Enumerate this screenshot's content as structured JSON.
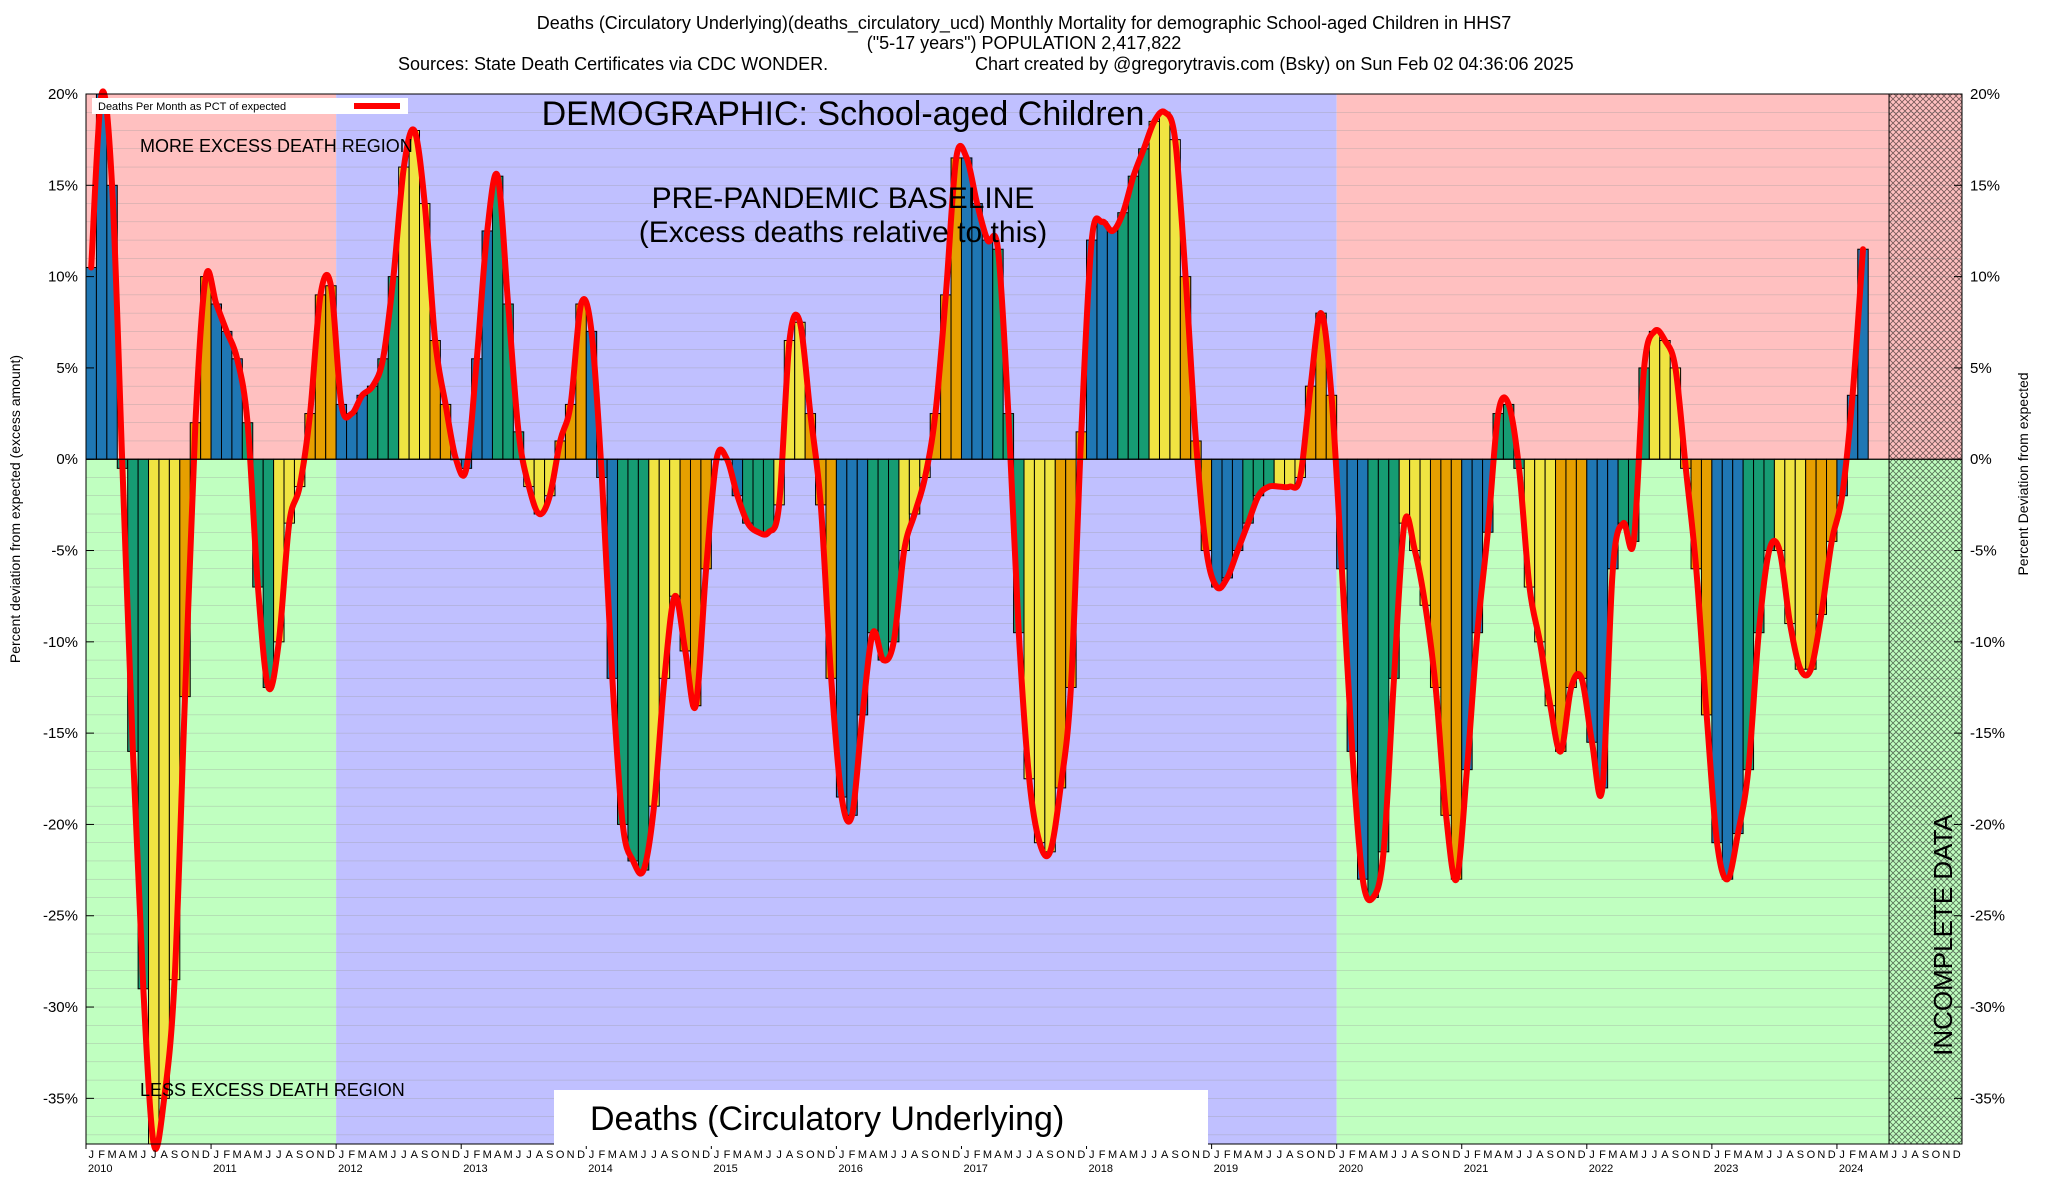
{
  "header": {
    "line1": "Deaths (Circulatory Underlying)(deaths_circulatory_ucd) Monthly Mortality for demographic School-aged Children in HHS7",
    "line2": "(\"5-17 years\") POPULATION 2,417,822",
    "line3_left": "Sources: State Death Certificates via CDC WONDER.",
    "line3_right": "Chart created by @gregorytravis.com (Bsky) on Sun Feb 02 04:36:06 2025"
  },
  "chart_data": {
    "type": "bar",
    "title": "Deaths (Circulatory Underlying)(deaths_circulatory_ucd) Monthly Mortality for demographic School-aged Children in HHS7",
    "ylabel_left": "Percent deviation from expected (excess amount)",
    "ylabel_right": "Percent Deviation from expected",
    "ylim": [
      -37.5,
      20
    ],
    "yticks": [
      20,
      15,
      10,
      5,
      0,
      -5,
      -10,
      -15,
      -20,
      -25,
      -30,
      -35
    ],
    "ytick_labels": [
      "20%",
      "15%",
      "10%",
      "5%",
      "0%",
      "-5%",
      "-10%",
      "-15%",
      "-20%",
      "-25%",
      "-30%",
      "-35%"
    ],
    "x_start": "2010-01",
    "x_end": "2024-12",
    "years": [
      "2010",
      "2011",
      "2012",
      "2013",
      "2014",
      "2015",
      "2016",
      "2017",
      "2018",
      "2019",
      "2020",
      "2021",
      "2022",
      "2023",
      "2024"
    ],
    "month_letters": [
      "J",
      "F",
      "M",
      "A",
      "M",
      "J",
      "J",
      "A",
      "S",
      "O",
      "N",
      "D"
    ],
    "legend": [
      {
        "label": "Deaths Per Month as PCT of expected",
        "color": "#ff0000"
      }
    ],
    "annotations": {
      "demographic": "DEMOGRAPHIC: School-aged Children",
      "baseline_1": "PRE-PANDEMIC BASELINE",
      "baseline_2": "(Excess deaths relative to this)",
      "more_region": "MORE EXCESS DEATH REGION",
      "less_region": "LESS EXCESS DEATH REGION",
      "incomplete": "INCOMPLETE DATA",
      "bottom_label": "Deaths (Circulatory Underlying)"
    },
    "baseline_period": [
      "2012-01",
      "2019-12"
    ],
    "incomplete_period": [
      "2024-06",
      "2024-12"
    ],
    "colors": {
      "bar_blue": "#1f77b4",
      "bar_green": "#169c73",
      "bar_yellow": "#f0e442",
      "bar_orange": "#e69f00",
      "line": "#ff0000",
      "excess_region": "#ffc0c0",
      "less_region": "#c0ffc0",
      "baseline_region": "#c0c0ff"
    },
    "series": [
      {
        "name": "Deaths Per Month as PCT of expected",
        "values": [
          10.5,
          20.0,
          15.0,
          -0.5,
          -16.0,
          -29.0,
          -37.5,
          -35.0,
          -28.5,
          -13.0,
          2.0,
          10.0,
          8.5,
          7.0,
          5.5,
          2.0,
          -7.0,
          -12.5,
          -10.0,
          -3.5,
          -1.5,
          2.5,
          9.0,
          9.5,
          3.0,
          2.5,
          3.5,
          4.0,
          5.5,
          10.0,
          16.0,
          18.0,
          14.0,
          6.5,
          3.0,
          0.0,
          -0.5,
          5.5,
          12.5,
          15.5,
          8.5,
          1.5,
          -1.5,
          -3.0,
          -2.0,
          1.0,
          3.0,
          8.5,
          7.0,
          -1.0,
          -12.0,
          -20.0,
          -22.0,
          -22.5,
          -19.0,
          -12.0,
          -7.5,
          -10.5,
          -13.5,
          -6.0,
          0.0,
          0.0,
          -2.0,
          -3.5,
          -4.0,
          -4.0,
          -2.5,
          6.5,
          7.5,
          2.5,
          -2.5,
          -12.0,
          -18.5,
          -19.5,
          -14.0,
          -9.5,
          -11.0,
          -10.0,
          -5.0,
          -3.0,
          -1.0,
          2.5,
          9.0,
          16.5,
          16.5,
          14.0,
          12.0,
          11.5,
          2.5,
          -9.5,
          -17.5,
          -21.0,
          -21.5,
          -18.0,
          -12.5,
          1.5,
          12.0,
          13.0,
          12.5,
          13.5,
          15.5,
          17.0,
          18.5,
          19.0,
          17.5,
          10.0,
          1.0,
          -5.0,
          -7.0,
          -6.5,
          -5.0,
          -3.5,
          -2.0,
          -1.5,
          -1.5,
          -1.5,
          -1.0,
          4.0,
          8.0,
          3.5,
          -6.0,
          -16.0,
          -23.0,
          -24.0,
          -21.5,
          -12.0,
          -3.5,
          -5.0,
          -8.0,
          -12.5,
          -19.5,
          -23.0,
          -17.0,
          -9.5,
          -4.0,
          2.5,
          3.0,
          -0.5,
          -7.0,
          -10.0,
          -13.5,
          -16.0,
          -12.5,
          -12.0,
          -15.5,
          -18.0,
          -6.0,
          -3.5,
          -4.5,
          5.0,
          7.0,
          6.5,
          5.0,
          -0.5,
          -6.0,
          -14.0,
          -21.0,
          -23.0,
          -20.5,
          -17.0,
          -9.5,
          -5.0,
          -5.0,
          -9.0,
          -11.5,
          -11.5,
          -8.5,
          -4.5,
          -2.0,
          3.5,
          11.5
        ]
      }
    ]
  }
}
